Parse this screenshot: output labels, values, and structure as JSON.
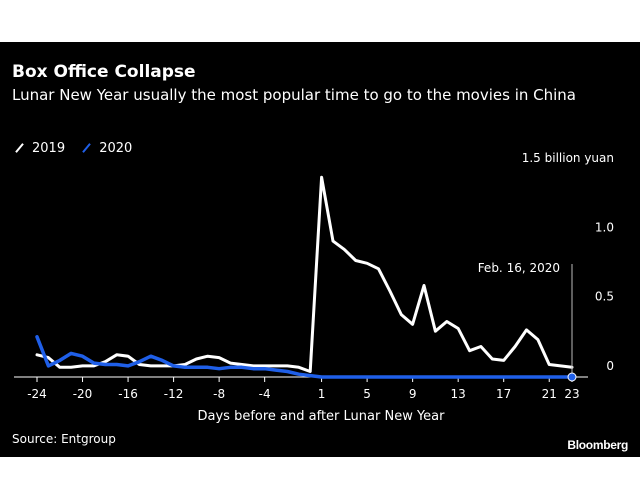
{
  "title": "Box Office Collapse",
  "subtitle": "Lunar New Year usually the most popular time to go to the movies in China",
  "source": "Source: Entgroup",
  "brand": "Bloomberg",
  "colors": {
    "background": "#000000",
    "series_2019": "#ffffff",
    "series_2020": "#1f5fe8",
    "text": "#ffffff"
  },
  "chart_data": {
    "type": "line",
    "xlabel": "Days before and after Lunar New Year",
    "ylabel": "",
    "ylim": [
      0,
      1.5
    ],
    "xlim": [
      -24,
      23
    ],
    "x_ticks": [
      -24,
      -20,
      -16,
      -12,
      -8,
      -4,
      1,
      5,
      9,
      13,
      17,
      21,
      23
    ],
    "x_tick_labels": [
      "-24",
      "-20",
      "-16",
      "-12",
      "-8",
      "-4",
      "1",
      "5",
      "9",
      "13",
      "17",
      "21",
      "23"
    ],
    "y_ticks": [
      0,
      0.5,
      1.0,
      1.5
    ],
    "y_tick_labels": [
      "0",
      "0.5",
      "1.0",
      "1.5 billion yuan"
    ],
    "grid": false,
    "legend_position": "top-left",
    "annotation": {
      "text": "Feb. 16, 2020",
      "x": 23,
      "y": 0
    },
    "series": [
      {
        "name": "2019",
        "color": "#ffffff",
        "x": [
          -24,
          -23,
          -22,
          -21,
          -20,
          -19,
          -18,
          -17,
          -16,
          -15,
          -14,
          -13,
          -12,
          -11,
          -10,
          -9,
          -8,
          -7,
          -6,
          -5,
          -4,
          -3,
          -2,
          -1,
          0,
          1,
          2,
          3,
          4,
          5,
          6,
          7,
          8,
          9,
          10,
          11,
          12,
          13,
          14,
          15,
          16,
          17,
          18,
          19,
          20,
          21,
          22,
          23
        ],
        "values": [
          0.16,
          0.14,
          0.07,
          0.07,
          0.08,
          0.08,
          0.11,
          0.16,
          0.15,
          0.09,
          0.08,
          0.08,
          0.08,
          0.09,
          0.13,
          0.15,
          0.14,
          0.1,
          0.09,
          0.08,
          0.08,
          0.08,
          0.08,
          0.07,
          0.04,
          1.44,
          0.98,
          0.92,
          0.84,
          0.82,
          0.78,
          0.62,
          0.45,
          0.38,
          0.66,
          0.33,
          0.4,
          0.35,
          0.19,
          0.22,
          0.13,
          0.12,
          0.22,
          0.34,
          0.27,
          0.09,
          0.08,
          0.07
        ]
      },
      {
        "name": "2020",
        "color": "#1f5fe8",
        "x": [
          -24,
          -23,
          -22,
          -21,
          -20,
          -19,
          -18,
          -17,
          -16,
          -15,
          -14,
          -13,
          -12,
          -11,
          -10,
          -9,
          -8,
          -7,
          -6,
          -5,
          -4,
          -3,
          -2,
          -1,
          0,
          1,
          2,
          3,
          4,
          5,
          6,
          7,
          8,
          9,
          10,
          11,
          12,
          13,
          14,
          15,
          16,
          17,
          18,
          19,
          20,
          21,
          22,
          23
        ],
        "values": [
          0.29,
          0.08,
          0.12,
          0.17,
          0.15,
          0.1,
          0.09,
          0.09,
          0.08,
          0.11,
          0.15,
          0.12,
          0.08,
          0.07,
          0.07,
          0.07,
          0.06,
          0.07,
          0.07,
          0.06,
          0.06,
          0.05,
          0.04,
          0.02,
          0.01,
          0.0,
          0.0,
          0.0,
          0.0,
          0.0,
          0.0,
          0.0,
          0.0,
          0.0,
          0.0,
          0.0,
          0.0,
          0.0,
          0.0,
          0.0,
          0.0,
          0.0,
          0.0,
          0.0,
          0.0,
          0.0,
          0.0,
          0.0
        ]
      }
    ]
  }
}
